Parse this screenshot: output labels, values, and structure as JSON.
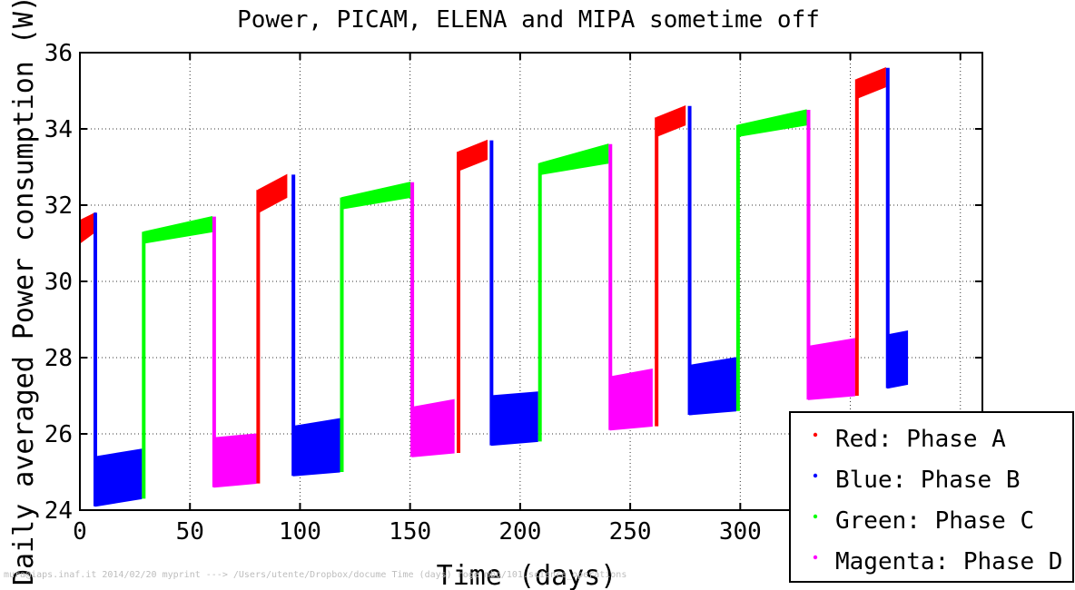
{
  "chart_data": {
    "type": "line",
    "title": "Power, PICAM, ELENA and MIPA sometime off",
    "xlabel": "Time (days)",
    "ylabel": "Daily averaged Power consumption (W)",
    "xlim": [
      0,
      410
    ],
    "ylim": [
      24,
      36
    ],
    "xticks": [
      0,
      50,
      100,
      150,
      200,
      250,
      300,
      350,
      400
    ],
    "xtick_labels": [
      "0",
      "50",
      "100",
      "150",
      "200",
      "250",
      "300",
      "",
      ""
    ],
    "yticks": [
      24,
      26,
      28,
      30,
      32,
      34,
      36
    ],
    "ytick_labels": [
      "24",
      "26",
      "28",
      "30",
      "32",
      "34",
      "36"
    ],
    "grid": true,
    "legend_position": "bottom-right",
    "series": [
      {
        "name": "Red: Phase A",
        "color": "#ff0000",
        "segments": [
          {
            "x_start": 0,
            "x_end": 7,
            "low_start": 31.0,
            "low_end": 31.3,
            "high_start": 31.6,
            "high_end": 31.8
          },
          {
            "x_start": 81,
            "x_end": 94,
            "low_start": 31.8,
            "low_end": 32.2,
            "high_start": 32.4,
            "high_end": 32.8
          },
          {
            "x_start": 172,
            "x_end": 185,
            "low_start": 32.9,
            "low_end": 33.2,
            "high_start": 33.4,
            "high_end": 33.7
          },
          {
            "x_start": 262,
            "x_end": 275,
            "low_start": 33.8,
            "low_end": 34.1,
            "high_start": 34.3,
            "high_end": 34.6
          },
          {
            "x_start": 353,
            "x_end": 366,
            "low_start": 34.8,
            "low_end": 35.1,
            "high_start": 35.3,
            "high_end": 35.6
          }
        ]
      },
      {
        "name": "Blue: Phase B",
        "color": "#0000ff",
        "segments": [
          {
            "x_start": 7,
            "x_end": 28,
            "low_start": 24.1,
            "low_end": 24.3,
            "high_start": 25.4,
            "high_end": 25.6
          },
          {
            "x_start": 97,
            "x_end": 118,
            "low_start": 24.9,
            "low_end": 25.0,
            "high_start": 26.2,
            "high_end": 26.4
          },
          {
            "x_start": 187,
            "x_end": 208,
            "low_start": 25.7,
            "low_end": 25.8,
            "high_start": 27.0,
            "high_end": 27.1
          },
          {
            "x_start": 277,
            "x_end": 298,
            "low_start": 26.5,
            "low_end": 26.6,
            "high_start": 27.8,
            "high_end": 28.0
          },
          {
            "x_start": 367,
            "x_end": 376,
            "low_start": 27.2,
            "low_end": 27.3,
            "high_start": 28.6,
            "high_end": 28.7
          }
        ]
      },
      {
        "name": "Green: Phase C",
        "color": "#00ff00",
        "segments": [
          {
            "x_start": 29,
            "x_end": 60,
            "low_start": 31.0,
            "low_end": 31.3,
            "high_start": 31.3,
            "high_end": 31.7
          },
          {
            "x_start": 119,
            "x_end": 150,
            "low_start": 31.9,
            "low_end": 32.2,
            "high_start": 32.2,
            "high_end": 32.6
          },
          {
            "x_start": 209,
            "x_end": 240,
            "low_start": 32.8,
            "low_end": 33.1,
            "high_start": 33.1,
            "high_end": 33.6
          },
          {
            "x_start": 299,
            "x_end": 330,
            "low_start": 33.8,
            "low_end": 34.1,
            "high_start": 34.1,
            "high_end": 34.5
          }
        ]
      },
      {
        "name": "Magenta: Phase D",
        "color": "#ff00ff",
        "segments": [
          {
            "x_start": 61,
            "x_end": 80,
            "low_start": 24.6,
            "low_end": 24.7,
            "high_start": 25.9,
            "high_end": 26.0
          },
          {
            "x_start": 151,
            "x_end": 170,
            "low_start": 25.4,
            "low_end": 25.5,
            "high_start": 26.7,
            "high_end": 26.9
          },
          {
            "x_start": 241,
            "x_end": 260,
            "low_start": 26.1,
            "low_end": 26.2,
            "high_start": 27.5,
            "high_end": 27.7
          },
          {
            "x_start": 331,
            "x_end": 352,
            "low_start": 26.9,
            "low_end": 27.0,
            "high_start": 28.3,
            "high_end": 28.5
          }
        ]
      }
    ]
  },
  "footer": "mura@iaps.inaf.it 2014/02/20 myprint ---> /Users/utente/Dropbox/docume  Time  (days)  roge       mbo/101.science_operations"
}
